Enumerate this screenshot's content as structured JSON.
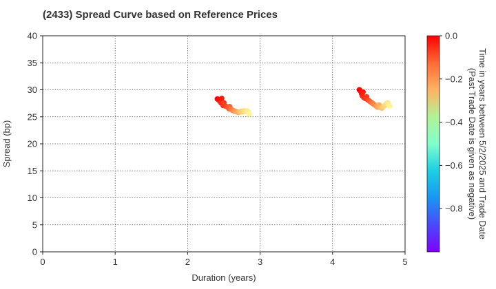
{
  "chart_data": {
    "type": "scatter",
    "title": "(2433)   Spread Curve based on Reference Prices",
    "xlabel": "Duration (years)",
    "ylabel": "Spread (bp)",
    "xlim": [
      0,
      5
    ],
    "ylim": [
      0,
      40
    ],
    "xticks": [
      "0",
      "1",
      "2",
      "3",
      "4",
      "5"
    ],
    "yticks": [
      "0",
      "5",
      "10",
      "15",
      "20",
      "25",
      "30",
      "35",
      "40"
    ],
    "grid": true,
    "colorbar": {
      "label_line1": "Time in years between 5/2/2025 and Trade Date",
      "label_line2": "(Past Trade Date is given as negative)",
      "range": [
        -1.0,
        0.0
      ],
      "ticks": [
        "0.0",
        "−0.2",
        "−0.4",
        "−0.6",
        "−0.8"
      ],
      "tick_values": [
        0.0,
        -0.2,
        -0.4,
        -0.6,
        -0.8
      ],
      "colormap": "rainbow"
    },
    "series": [
      {
        "points": [
          {
            "x": 2.41,
            "y": 28.3,
            "c": 0.0
          },
          {
            "x": 2.43,
            "y": 28.1,
            "c": -0.01
          },
          {
            "x": 2.45,
            "y": 27.9,
            "c": -0.02
          },
          {
            "x": 2.47,
            "y": 28.4,
            "c": -0.03
          },
          {
            "x": 2.46,
            "y": 27.6,
            "c": -0.04
          },
          {
            "x": 2.48,
            "y": 27.4,
            "c": -0.05
          },
          {
            "x": 2.49,
            "y": 27.1,
            "c": -0.06
          },
          {
            "x": 2.5,
            "y": 27.6,
            "c": -0.07
          },
          {
            "x": 2.52,
            "y": 27.0,
            "c": -0.08
          },
          {
            "x": 2.55,
            "y": 26.8,
            "c": -0.1
          },
          {
            "x": 2.57,
            "y": 26.5,
            "c": -0.12
          },
          {
            "x": 2.58,
            "y": 26.9,
            "c": -0.13
          },
          {
            "x": 2.6,
            "y": 26.4,
            "c": -0.15
          },
          {
            "x": 2.62,
            "y": 26.2,
            "c": -0.17
          },
          {
            "x": 2.64,
            "y": 26.1,
            "c": -0.19
          },
          {
            "x": 2.66,
            "y": 26.0,
            "c": -0.21
          },
          {
            "x": 2.68,
            "y": 25.9,
            "c": -0.23
          },
          {
            "x": 2.7,
            "y": 25.8,
            "c": -0.25
          },
          {
            "x": 2.72,
            "y": 25.9,
            "c": -0.27
          },
          {
            "x": 2.74,
            "y": 26.0,
            "c": -0.29
          },
          {
            "x": 2.76,
            "y": 25.9,
            "c": -0.31
          },
          {
            "x": 2.78,
            "y": 26.1,
            "c": -0.33
          },
          {
            "x": 2.8,
            "y": 26.0,
            "c": -0.35
          },
          {
            "x": 2.82,
            "y": 26.1,
            "c": -0.37
          },
          {
            "x": 2.84,
            "y": 25.9,
            "c": -0.39
          },
          {
            "x": 2.85,
            "y": 25.5,
            "c": -0.41
          }
        ]
      },
      {
        "points": [
          {
            "x": 4.37,
            "y": 30.0,
            "c": 0.0
          },
          {
            "x": 4.39,
            "y": 29.7,
            "c": -0.01
          },
          {
            "x": 4.4,
            "y": 29.3,
            "c": -0.02
          },
          {
            "x": 4.42,
            "y": 29.6,
            "c": -0.03
          },
          {
            "x": 4.41,
            "y": 28.9,
            "c": -0.04
          },
          {
            "x": 4.43,
            "y": 28.6,
            "c": -0.05
          },
          {
            "x": 4.45,
            "y": 28.4,
            "c": -0.06
          },
          {
            "x": 4.47,
            "y": 28.7,
            "c": -0.07
          },
          {
            "x": 4.48,
            "y": 28.2,
            "c": -0.08
          },
          {
            "x": 4.5,
            "y": 28.0,
            "c": -0.1
          },
          {
            "x": 4.52,
            "y": 27.8,
            "c": -0.12
          },
          {
            "x": 4.54,
            "y": 27.6,
            "c": -0.14
          },
          {
            "x": 4.56,
            "y": 27.4,
            "c": -0.16
          },
          {
            "x": 4.58,
            "y": 27.2,
            "c": -0.18
          },
          {
            "x": 4.6,
            "y": 27.0,
            "c": -0.2
          },
          {
            "x": 4.62,
            "y": 26.8,
            "c": -0.22
          },
          {
            "x": 4.64,
            "y": 27.2,
            "c": -0.24
          },
          {
            "x": 4.66,
            "y": 26.7,
            "c": -0.26
          },
          {
            "x": 4.68,
            "y": 26.6,
            "c": -0.28
          },
          {
            "x": 4.7,
            "y": 26.9,
            "c": -0.3
          },
          {
            "x": 4.72,
            "y": 27.1,
            "c": -0.32
          },
          {
            "x": 4.74,
            "y": 27.4,
            "c": -0.34
          },
          {
            "x": 4.76,
            "y": 27.6,
            "c": -0.36
          },
          {
            "x": 4.77,
            "y": 27.3,
            "c": -0.38
          },
          {
            "x": 4.79,
            "y": 27.0,
            "c": -0.4
          }
        ]
      }
    ]
  }
}
